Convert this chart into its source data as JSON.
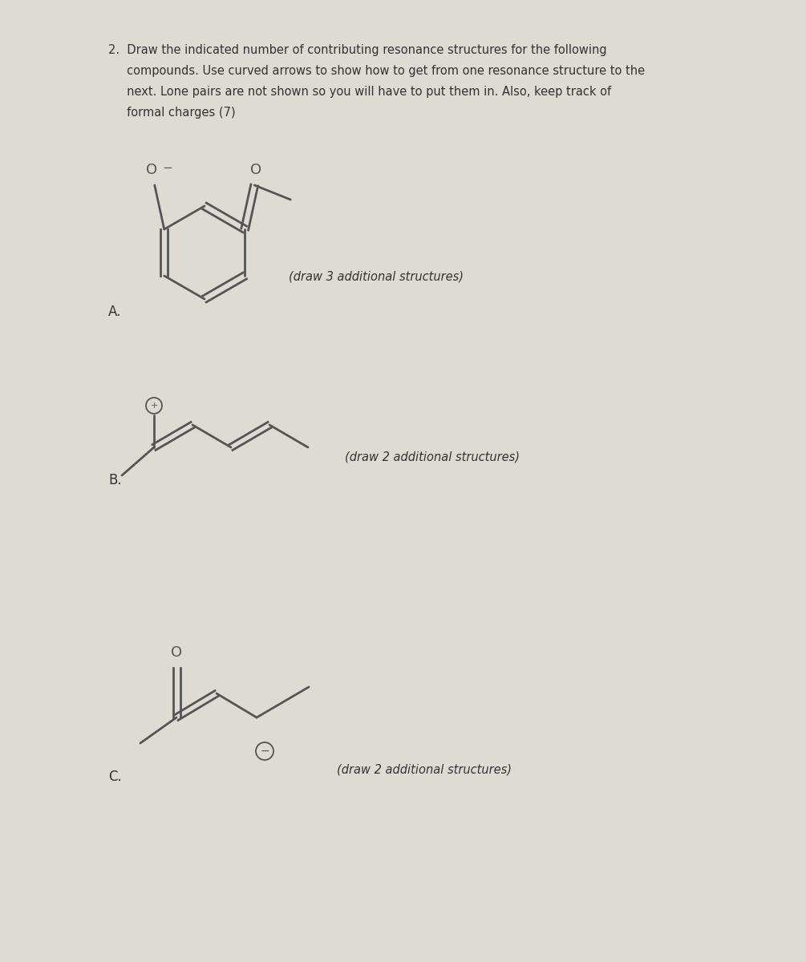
{
  "background_color": "#dedad4",
  "line_color": "#555555",
  "text_color": "#333333",
  "title_lines": [
    "2.  Draw the indicated number of contributing resonance structures for the following",
    "     compounds. Use curved arrows to show how to get from one resonance structure to the",
    "     next. Lone pairs are not shown so you will have to put them in. Also, keep track of",
    "     formal charges (7)"
  ],
  "label_A": "A.",
  "label_B": "B.",
  "label_C": "C.",
  "draw3_text": "(draw 3 additional structures)",
  "draw2_text": "(draw 2 additional structures)"
}
